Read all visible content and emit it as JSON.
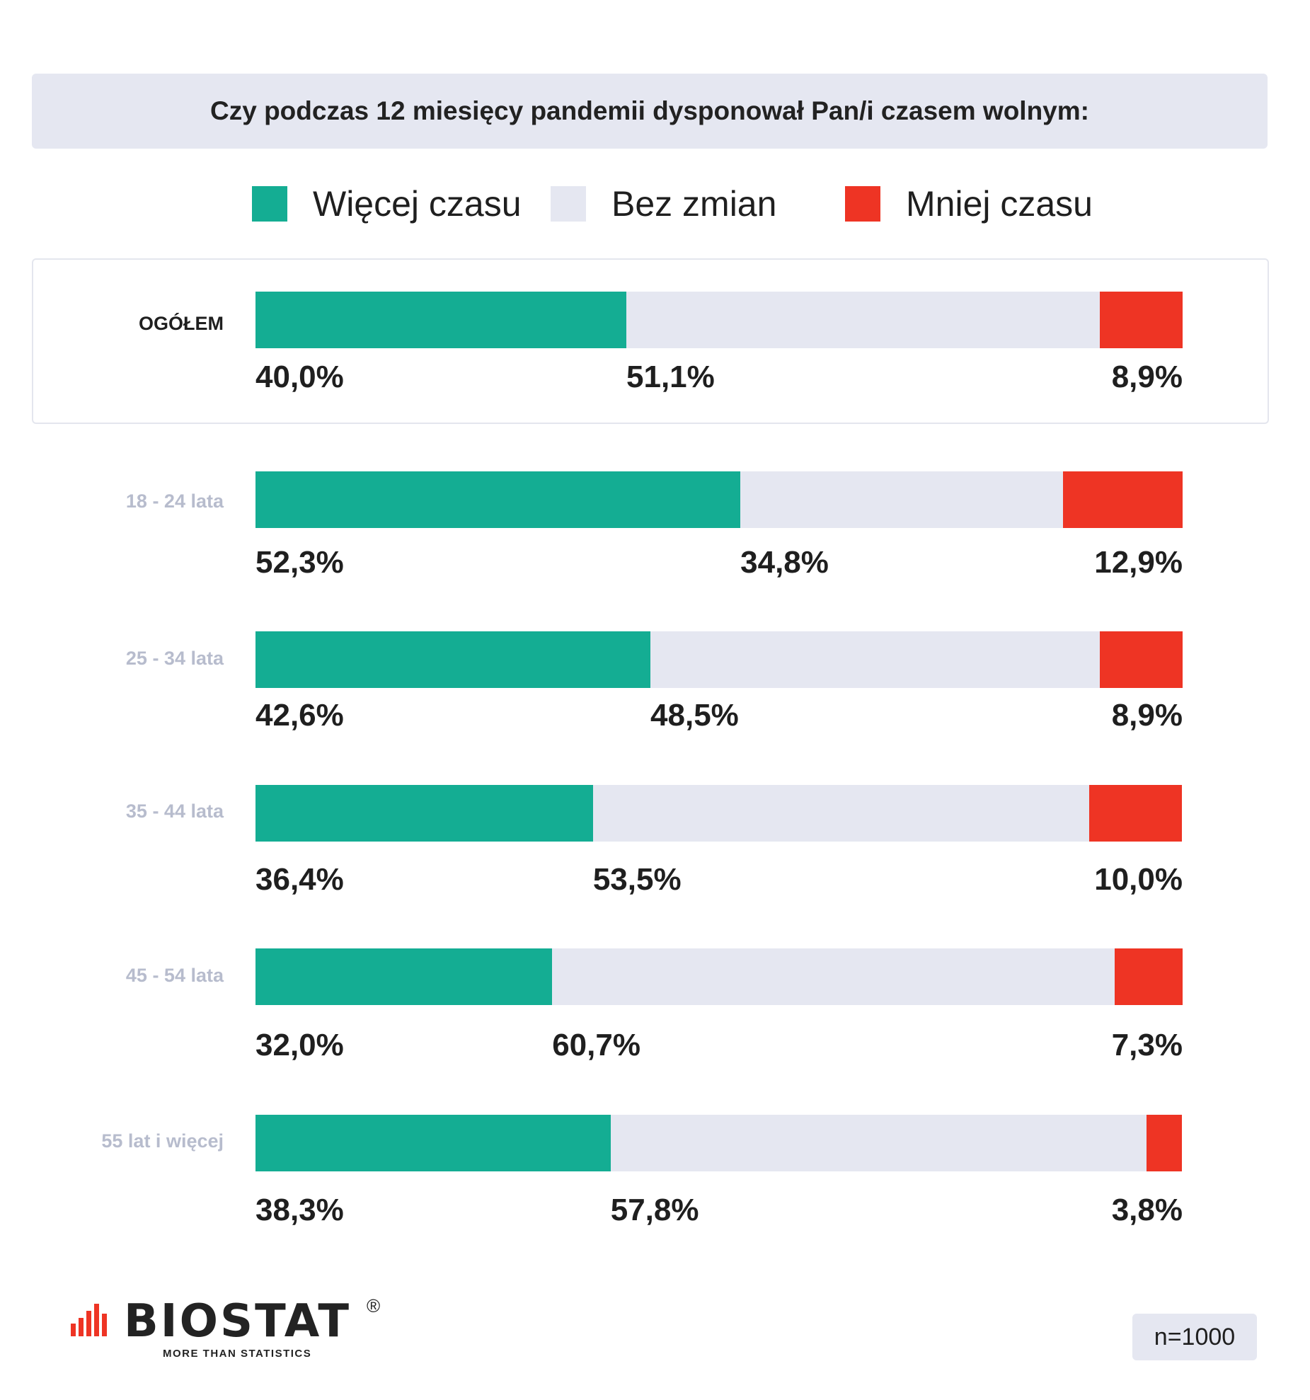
{
  "colors": {
    "more": "#14ad93",
    "same": "#e5e7f1",
    "less": "#ee3424"
  },
  "chart_data": {
    "type": "bar",
    "stacked": true,
    "orientation": "horizontal",
    "title": "Czy podczas 12 miesięcy pandemii dysponował Pan/i czasem wolnym:",
    "categories": [
      "OGÓŁEM",
      "18 - 24 lata",
      "25 - 34 lata",
      "35 - 44 lata",
      "45 - 54 lata",
      "55 lat i więcej"
    ],
    "value_labels": [
      [
        "40,0%",
        "51,1%",
        "8,9%"
      ],
      [
        "52,3%",
        "34,8%",
        "12,9%"
      ],
      [
        "42,6%",
        "48,5%",
        "8,9%"
      ],
      [
        "36,4%",
        "53,5%",
        "10,0%"
      ],
      [
        "32,0%",
        "60,7%",
        "7,3%"
      ],
      [
        "38,3%",
        "57,8%",
        "3,8%"
      ]
    ],
    "series": [
      {
        "name": "Więcej czasu",
        "values": [
          40.0,
          52.3,
          42.6,
          36.4,
          32.0,
          38.3
        ]
      },
      {
        "name": "Bez zmian",
        "values": [
          51.1,
          34.8,
          48.5,
          53.5,
          60.7,
          57.8
        ]
      },
      {
        "name": "Mniej czasu",
        "values": [
          8.9,
          12.9,
          8.9,
          10.0,
          7.3,
          3.8
        ]
      }
    ],
    "legend_position": "top",
    "xlim": [
      0,
      100
    ]
  },
  "footer": {
    "logo_text": "BIOSTAT",
    "logo_reg": "®",
    "logo_tagline": "MORE THAN STATISTICS",
    "sample_size": "n=1000"
  }
}
